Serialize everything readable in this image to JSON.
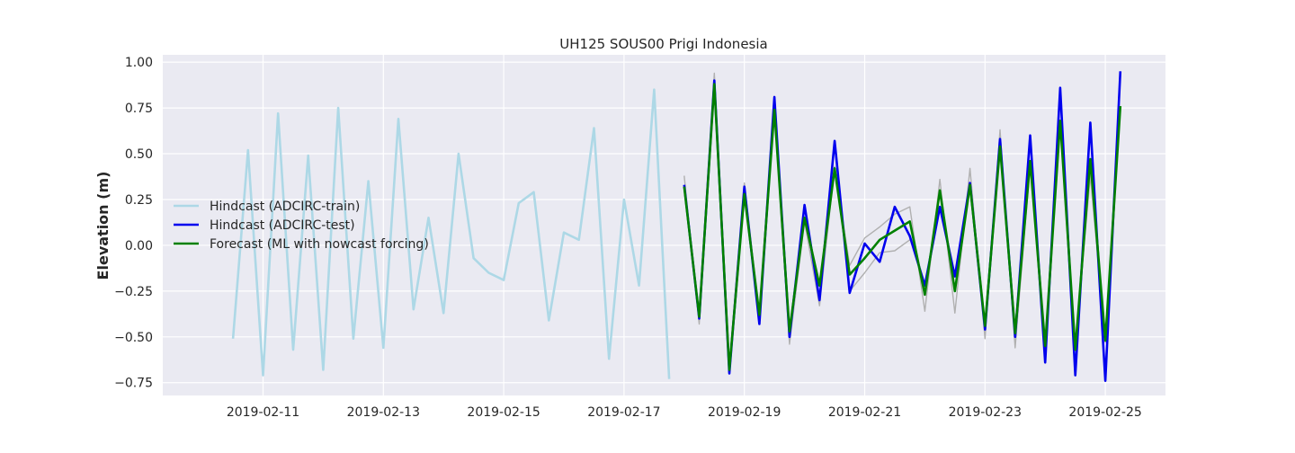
{
  "chart_data": {
    "type": "line",
    "title": "UH125 SOUS00 Prigi Indonesia",
    "xlabel": "",
    "ylabel": "Elevation (m)",
    "x_type": "date",
    "xlim": [
      "2019-02-09 08:00",
      "2019-02-26 00:00"
    ],
    "ylim": [
      -0.82,
      1.04
    ],
    "xticks": [
      "2019-02-11",
      "2019-02-13",
      "2019-02-15",
      "2019-02-17",
      "2019-02-19",
      "2019-02-21",
      "2019-02-23",
      "2019-02-25"
    ],
    "yticks": [
      1.0,
      0.75,
      0.5,
      0.25,
      0.0,
      -0.25,
      -0.5,
      -0.75
    ],
    "ytick_labels": [
      "1.00",
      "0.75",
      "0.50",
      "0.25",
      "0.00",
      "−0.25",
      "−0.50",
      "−0.75"
    ],
    "grid": true,
    "background": "#eaeaf2",
    "legend_position": "center-left",
    "series": [
      {
        "name": "Hindcast (ADCIRC-train)",
        "color": "#add8e6",
        "points": [
          [
            "2019-02-10 12:00",
            -0.51
          ],
          [
            "2019-02-10 18:00",
            0.52
          ],
          [
            "2019-02-11 00:00",
            -0.71
          ],
          [
            "2019-02-11 06:00",
            0.72
          ],
          [
            "2019-02-11 12:00",
            -0.57
          ],
          [
            "2019-02-11 18:00",
            0.49
          ],
          [
            "2019-02-12 00:00",
            -0.68
          ],
          [
            "2019-02-12 06:00",
            0.75
          ],
          [
            "2019-02-12 12:00",
            -0.51
          ],
          [
            "2019-02-12 18:00",
            0.35
          ],
          [
            "2019-02-13 00:00",
            -0.56
          ],
          [
            "2019-02-13 06:00",
            0.69
          ],
          [
            "2019-02-13 12:00",
            -0.35
          ],
          [
            "2019-02-13 18:00",
            0.15
          ],
          [
            "2019-02-14 00:00",
            -0.37
          ],
          [
            "2019-02-14 06:00",
            0.5
          ],
          [
            "2019-02-14 12:00",
            -0.07
          ],
          [
            "2019-02-14 18:00",
            -0.15
          ],
          [
            "2019-02-15 00:00",
            -0.19
          ],
          [
            "2019-02-15 06:00",
            0.23
          ],
          [
            "2019-02-15 12:00",
            0.29
          ],
          [
            "2019-02-15 18:00",
            -0.41
          ],
          [
            "2019-02-16 00:00",
            0.07
          ],
          [
            "2019-02-16 06:00",
            0.03
          ],
          [
            "2019-02-16 12:00",
            0.64
          ],
          [
            "2019-02-16 18:00",
            -0.62
          ],
          [
            "2019-02-17 00:00",
            0.25
          ],
          [
            "2019-02-17 06:00",
            -0.22
          ],
          [
            "2019-02-17 12:00",
            0.85
          ],
          [
            "2019-02-17 18:00",
            -0.73
          ]
        ]
      },
      {
        "name": "",
        "color": "#b0b0b0",
        "points": [
          [
            "2019-02-18 00:00",
            0.38
          ],
          [
            "2019-02-18 06:00",
            -0.43
          ],
          [
            "2019-02-18 12:00",
            0.94
          ],
          [
            "2019-02-18 18:00",
            -0.65
          ],
          [
            "2019-02-19 00:00",
            0.34
          ],
          [
            "2019-02-19 06:00",
            -0.38
          ],
          [
            "2019-02-19 12:00",
            0.74
          ],
          [
            "2019-02-19 18:00",
            -0.54
          ],
          [
            "2019-02-20 00:00",
            0.13
          ],
          [
            "2019-02-20 06:00",
            -0.33
          ],
          [
            "2019-02-20 12:00",
            0.43
          ],
          [
            "2019-02-20 18:00",
            -0.11
          ],
          [
            "2019-02-21 00:00",
            0.04
          ],
          [
            "2019-02-21 06:00",
            0.1
          ],
          [
            "2019-02-21 12:00",
            0.17
          ],
          [
            "2019-02-21 18:00",
            0.21
          ],
          [
            "2019-02-22 00:00",
            -0.36
          ],
          [
            "2019-02-22 06:00",
            0.36
          ],
          [
            "2019-02-22 12:00",
            -0.37
          ],
          [
            "2019-02-22 18:00",
            0.42
          ],
          [
            "2019-02-23 00:00",
            -0.51
          ],
          [
            "2019-02-23 06:00",
            0.63
          ],
          [
            "2019-02-23 12:00",
            -0.56
          ],
          [
            "2019-02-23 18:00",
            0.44
          ],
          [
            "2019-02-24 00:00",
            -0.56
          ],
          [
            "2019-02-24 06:00",
            0.66
          ],
          [
            "2019-02-24 12:00",
            -0.54
          ],
          [
            "2019-02-24 18:00",
            0.38
          ],
          [
            "2019-02-25 00:00",
            -0.53
          ],
          [
            "2019-02-25 06:00",
            0.76
          ]
        ]
      },
      {
        "name": "",
        "color": "#b0b0b0",
        "points": [
          [
            "2019-02-20 18:00",
            -0.25
          ],
          [
            "2019-02-21 00:00",
            -0.15
          ],
          [
            "2019-02-21 06:00",
            -0.04
          ],
          [
            "2019-02-21 12:00",
            -0.03
          ],
          [
            "2019-02-21 18:00",
            0.03
          ]
        ]
      },
      {
        "name": "Hindcast (ADCIRC-test)",
        "color": "#0000ee",
        "points": [
          [
            "2019-02-18 00:00",
            0.33
          ],
          [
            "2019-02-18 06:00",
            -0.4
          ],
          [
            "2019-02-18 12:00",
            0.9
          ],
          [
            "2019-02-18 18:00",
            -0.7
          ],
          [
            "2019-02-19 00:00",
            0.32
          ],
          [
            "2019-02-19 06:00",
            -0.43
          ],
          [
            "2019-02-19 12:00",
            0.81
          ],
          [
            "2019-02-19 18:00",
            -0.5
          ],
          [
            "2019-02-20 00:00",
            0.22
          ],
          [
            "2019-02-20 06:00",
            -0.3
          ],
          [
            "2019-02-20 12:00",
            0.57
          ],
          [
            "2019-02-20 18:00",
            -0.26
          ],
          [
            "2019-02-21 00:00",
            0.01
          ],
          [
            "2019-02-21 06:00",
            -0.09
          ],
          [
            "2019-02-21 12:00",
            0.21
          ],
          [
            "2019-02-21 18:00",
            0.05
          ],
          [
            "2019-02-22 00:00",
            -0.22
          ],
          [
            "2019-02-22 06:00",
            0.21
          ],
          [
            "2019-02-22 12:00",
            -0.17
          ],
          [
            "2019-02-22 18:00",
            0.34
          ],
          [
            "2019-02-23 00:00",
            -0.46
          ],
          [
            "2019-02-23 06:00",
            0.58
          ],
          [
            "2019-02-23 12:00",
            -0.5
          ],
          [
            "2019-02-23 18:00",
            0.6
          ],
          [
            "2019-02-24 00:00",
            -0.64
          ],
          [
            "2019-02-24 06:00",
            0.86
          ],
          [
            "2019-02-24 12:00",
            -0.71
          ],
          [
            "2019-02-24 18:00",
            0.67
          ],
          [
            "2019-02-25 00:00",
            -0.74
          ],
          [
            "2019-02-25 06:00",
            0.95
          ]
        ]
      },
      {
        "name": "Forecast (ML with nowcast forcing)",
        "color": "#008000",
        "points": [
          [
            "2019-02-18 00:00",
            0.32
          ],
          [
            "2019-02-18 06:00",
            -0.39
          ],
          [
            "2019-02-18 12:00",
            0.88
          ],
          [
            "2019-02-18 18:00",
            -0.68
          ],
          [
            "2019-02-19 00:00",
            0.28
          ],
          [
            "2019-02-19 06:00",
            -0.38
          ],
          [
            "2019-02-19 12:00",
            0.74
          ],
          [
            "2019-02-19 18:00",
            -0.47
          ],
          [
            "2019-02-20 00:00",
            0.15
          ],
          [
            "2019-02-20 06:00",
            -0.22
          ],
          [
            "2019-02-20 12:00",
            0.42
          ],
          [
            "2019-02-20 18:00",
            -0.16
          ],
          [
            "2019-02-21 00:00",
            -0.07
          ],
          [
            "2019-02-21 06:00",
            0.03
          ],
          [
            "2019-02-21 12:00",
            0.08
          ],
          [
            "2019-02-21 18:00",
            0.13
          ],
          [
            "2019-02-22 00:00",
            -0.27
          ],
          [
            "2019-02-22 06:00",
            0.3
          ],
          [
            "2019-02-22 12:00",
            -0.25
          ],
          [
            "2019-02-22 18:00",
            0.33
          ],
          [
            "2019-02-23 00:00",
            -0.44
          ],
          [
            "2019-02-23 06:00",
            0.54
          ],
          [
            "2019-02-23 12:00",
            -0.48
          ],
          [
            "2019-02-23 18:00",
            0.46
          ],
          [
            "2019-02-24 00:00",
            -0.55
          ],
          [
            "2019-02-24 06:00",
            0.68
          ],
          [
            "2019-02-24 12:00",
            -0.57
          ],
          [
            "2019-02-24 18:00",
            0.47
          ],
          [
            "2019-02-25 00:00",
            -0.52
          ],
          [
            "2019-02-25 06:00",
            0.76
          ]
        ]
      }
    ]
  }
}
